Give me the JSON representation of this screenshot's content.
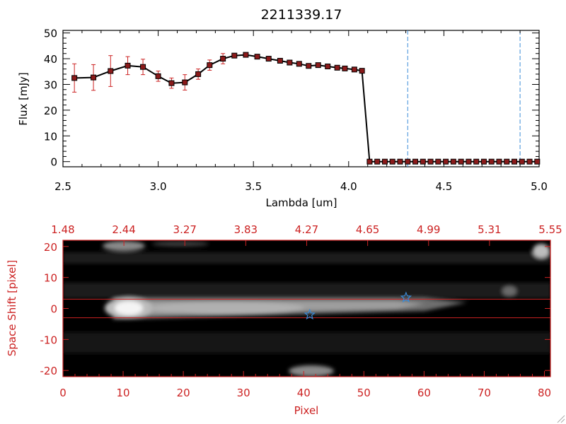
{
  "title": "2211339.17",
  "colors": {
    "black": "#000000",
    "red": "#cc2222",
    "blue": "#3b8bd8",
    "marker_fill": "#8b1a1a"
  },
  "chart_data": [
    {
      "type": "line",
      "title": "2211339.17",
      "xlabel": "Lambda [um]",
      "ylabel": "Flux [mJy]",
      "xlim": [
        2.5,
        5.0
      ],
      "ylim": [
        -2,
        51
      ],
      "xticks": [
        "2.5",
        "3.0",
        "3.5",
        "4.0",
        "4.5",
        "5.0"
      ],
      "yticks": [
        "0",
        "10",
        "20",
        "30",
        "40",
        "50"
      ],
      "series": [
        {
          "x": [
            2.56,
            2.66,
            2.75,
            2.84,
            2.92,
            3.0,
            3.07,
            3.14,
            3.21,
            3.27,
            3.34,
            3.4,
            3.46,
            3.52,
            3.58,
            3.64,
            3.69,
            3.74,
            3.79,
            3.84,
            3.89,
            3.94,
            3.98,
            4.03,
            4.07,
            4.11,
            4.15,
            4.19,
            4.23,
            4.27,
            4.31,
            4.35,
            4.39,
            4.43,
            4.47,
            4.51,
            4.55,
            4.59,
            4.63,
            4.67,
            4.71,
            4.75,
            4.79,
            4.83,
            4.87,
            4.91,
            4.95,
            4.99
          ],
          "y": [
            32.5,
            32.7,
            35.2,
            37.3,
            36.8,
            33.2,
            30.5,
            30.8,
            34.0,
            37.5,
            40.0,
            41.2,
            41.5,
            40.8,
            40.0,
            39.2,
            38.5,
            38.0,
            37.2,
            37.5,
            37.0,
            36.5,
            36.2,
            35.8,
            35.3,
            0,
            0,
            0,
            0,
            0,
            0,
            0,
            0,
            0,
            0,
            0,
            0,
            0,
            0,
            0,
            0,
            0,
            0,
            0,
            0,
            0,
            0,
            0
          ],
          "err": [
            5.5,
            5.0,
            6.0,
            3.5,
            3.0,
            2.0,
            2.0,
            3.0,
            2.0,
            2.0,
            2.0,
            0,
            0,
            0,
            0,
            0,
            0,
            0,
            0,
            0,
            0,
            0,
            0,
            0,
            0,
            0,
            0,
            0,
            0,
            0,
            0,
            0,
            0,
            0,
            0,
            0,
            0,
            0,
            0,
            0,
            0,
            0,
            0,
            0,
            0,
            0,
            0,
            0
          ]
        }
      ],
      "vlines": [
        4.31,
        4.9
      ]
    },
    {
      "type": "heatmap",
      "xlabel": "Pixel",
      "ylabel": "Space Shift [pixel]",
      "xlim": [
        0,
        81
      ],
      "ylim": [
        -22,
        22
      ],
      "xticks": [
        "0",
        "10",
        "20",
        "30",
        "40",
        "50",
        "60",
        "70",
        "80"
      ],
      "yticks": [
        "-20",
        "-10",
        "0",
        "10",
        "20"
      ],
      "top_ticks": [
        "1.48",
        "2.44",
        "3.27",
        "3.83",
        "4.27",
        "4.65",
        "4.99",
        "5.31",
        "5.55"
      ],
      "hlines": [
        3,
        -3
      ],
      "stars": [
        {
          "x": 41,
          "y": -2
        },
        {
          "x": 57,
          "y": 3.5
        }
      ]
    }
  ]
}
